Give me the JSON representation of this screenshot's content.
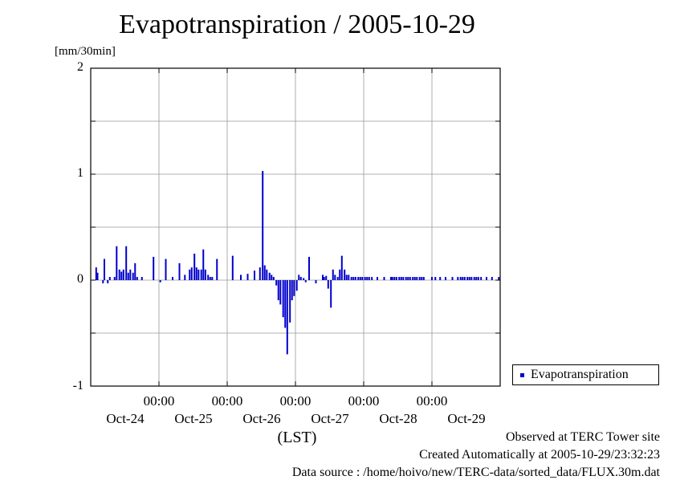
{
  "title": "Evapotranspiration / 2005-10-29",
  "unit_label": "[mm/30min]",
  "y_ticks": [
    "2",
    "1",
    "0",
    "-1"
  ],
  "x_time_ticks": [
    "00:00",
    "00:00",
    "00:00",
    "00:00",
    "00:00"
  ],
  "x_date_labels": [
    "Oct-24",
    "Oct-25",
    "Oct-26",
    "Oct-27",
    "Oct-28",
    "Oct-29"
  ],
  "xlabel": "(LST)",
  "legend": {
    "label": "Evapotranspiration",
    "color": "#0000cc"
  },
  "footer": {
    "observed": "Observed at TERC Tower site",
    "created": "Created Automatically at 2005-10-29/23:32:23",
    "source": "Data source : /home/hoivo/new/TERC-data/sorted_data/FLUX.30m.dat"
  },
  "chart_data": {
    "type": "bar",
    "title": "Evapotranspiration / 2005-10-29",
    "ylabel": "[mm/30min]",
    "xlabel": "(LST)",
    "ylim": [
      -1,
      2
    ],
    "xlim_days": [
      0,
      6
    ],
    "x_unit": "days",
    "grid": true,
    "legend_position": "right",
    "series": [
      {
        "name": "Evapotranspiration",
        "color": "#0000cc",
        "x": [
          0.08,
          0.1,
          0.18,
          0.2,
          0.25,
          0.28,
          0.35,
          0.38,
          0.42,
          0.45,
          0.48,
          0.52,
          0.55,
          0.58,
          0.62,
          0.65,
          0.68,
          0.75,
          0.92,
          1.02,
          1.1,
          1.2,
          1.3,
          1.38,
          1.45,
          1.48,
          1.52,
          1.55,
          1.58,
          1.62,
          1.65,
          1.68,
          1.72,
          1.75,
          1.78,
          1.85,
          2.08,
          2.2,
          2.3,
          2.4,
          2.48,
          2.52,
          2.55,
          2.58,
          2.62,
          2.65,
          2.68,
          2.72,
          2.75,
          2.78,
          2.82,
          2.85,
          2.88,
          2.92,
          2.95,
          2.98,
          3.02,
          3.05,
          3.08,
          3.12,
          3.15,
          3.2,
          3.3,
          3.4,
          3.42,
          3.45,
          3.48,
          3.52,
          3.55,
          3.58,
          3.62,
          3.65,
          3.68,
          3.72,
          3.75,
          3.78,
          3.82,
          3.85,
          3.88,
          3.92,
          3.95,
          3.98,
          4.02,
          4.05,
          4.08,
          4.12,
          4.2,
          4.3,
          4.4,
          4.42,
          4.45,
          4.48,
          4.52,
          4.55,
          4.58,
          4.62,
          4.65,
          4.68,
          4.72,
          4.75,
          4.78,
          4.82,
          4.85,
          4.88,
          5.0,
          5.05,
          5.12,
          5.2,
          5.3,
          5.38,
          5.42,
          5.45,
          5.48,
          5.52,
          5.55,
          5.58,
          5.62,
          5.65,
          5.68,
          5.72,
          5.8,
          5.88,
          5.98
        ],
        "values": [
          0.12,
          0.07,
          -0.03,
          0.2,
          -0.03,
          0.03,
          0.03,
          0.32,
          0.1,
          0.08,
          0.1,
          0.32,
          0.07,
          0.1,
          0.07,
          0.16,
          0.03,
          0.03,
          0.22,
          -0.02,
          0.2,
          0.03,
          0.16,
          0.05,
          0.1,
          0.12,
          0.25,
          0.12,
          0.1,
          0.1,
          0.29,
          0.1,
          0.05,
          0.03,
          0.03,
          0.2,
          0.23,
          0.05,
          0.06,
          0.09,
          0.12,
          1.03,
          0.14,
          0.1,
          0.07,
          0.05,
          0.03,
          -0.05,
          -0.19,
          -0.23,
          -0.35,
          -0.45,
          -0.7,
          -0.4,
          -0.19,
          -0.15,
          -0.1,
          0.05,
          0.03,
          0.02,
          -0.02,
          0.22,
          -0.03,
          0.05,
          0.03,
          0.04,
          -0.08,
          -0.26,
          0.1,
          0.05,
          0.03,
          0.1,
          0.23,
          0.1,
          0.05,
          0.05,
          0.03,
          0.03,
          0.03,
          0.03,
          0.03,
          0.03,
          0.03,
          0.03,
          0.03,
          0.03,
          0.03,
          0.03,
          0.03,
          0.03,
          0.03,
          0.03,
          0.03,
          0.03,
          0.03,
          0.03,
          0.03,
          0.03,
          0.03,
          0.03,
          0.03,
          0.03,
          0.03,
          0.03,
          0.03,
          0.03,
          0.03,
          0.03,
          0.03,
          0.03,
          0.03,
          0.03,
          0.03,
          0.03,
          0.03,
          0.03,
          0.03,
          0.03,
          0.03,
          0.03,
          0.03,
          0.03,
          0.03
        ]
      }
    ]
  }
}
